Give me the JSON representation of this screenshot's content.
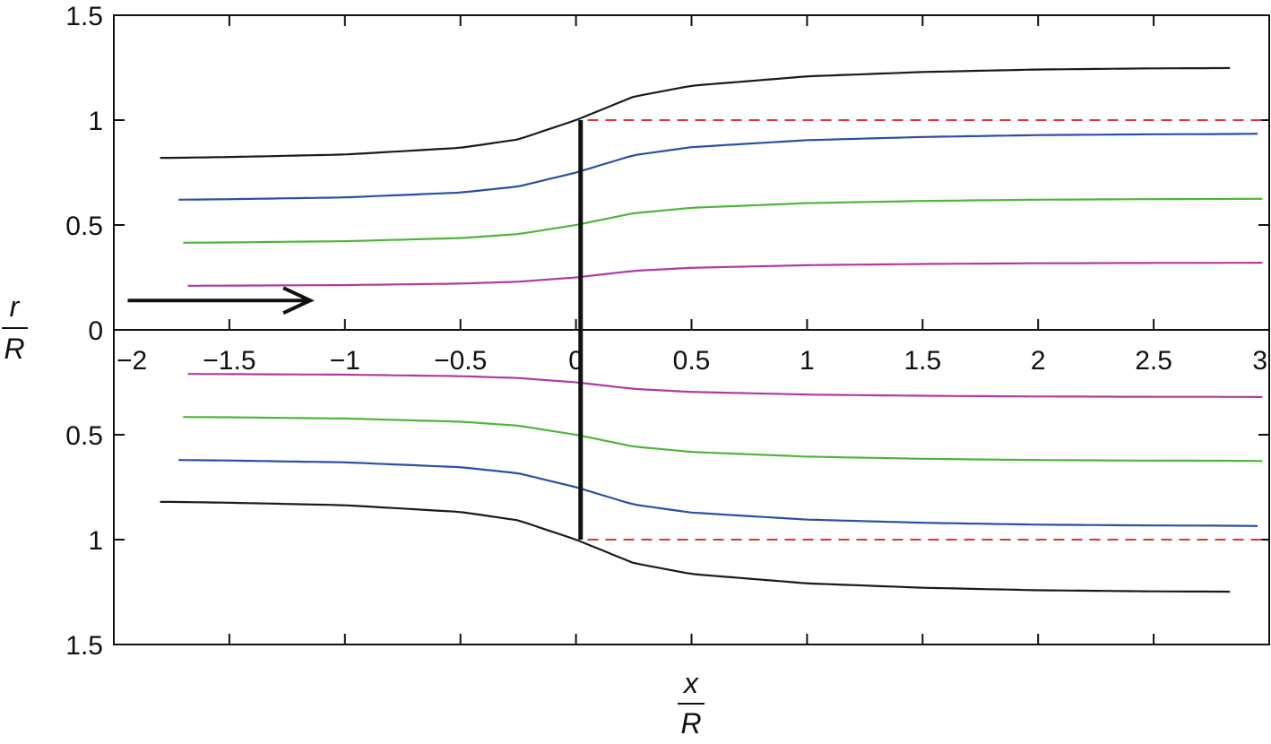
{
  "chart_data": {
    "type": "line",
    "xlabel": {
      "numerator": "x",
      "denominator": "R"
    },
    "ylabel": {
      "numerator": "r",
      "denominator": "R"
    },
    "xlim": [
      -2,
      3
    ],
    "ylim": [
      -1.5,
      1.5
    ],
    "grid": false,
    "x_ticks": [
      {
        "value": -2,
        "label": "−2"
      },
      {
        "value": -1.5,
        "label": "−1.5"
      },
      {
        "value": -1,
        "label": "−1"
      },
      {
        "value": -0.5,
        "label": "−0.5"
      },
      {
        "value": 0,
        "label": "0"
      },
      {
        "value": 0.5,
        "label": "0.5"
      },
      {
        "value": 1,
        "label": "1"
      },
      {
        "value": 1.5,
        "label": "1.5"
      },
      {
        "value": 2,
        "label": "2"
      },
      {
        "value": 2.5,
        "label": "2.5"
      },
      {
        "value": 3,
        "label": "3"
      }
    ],
    "y_ticks": [
      {
        "value": 1.5,
        "label": "1.5"
      },
      {
        "value": 1,
        "label": "1"
      },
      {
        "value": 0.5,
        "label": "0.5"
      },
      {
        "value": 0,
        "label": "0"
      },
      {
        "value": -0.5,
        "label": "0.5"
      },
      {
        "value": -1,
        "label": "1"
      },
      {
        "value": -1.5,
        "label": "1.5"
      }
    ],
    "streamline_params": {
      "x": [
        -1.75,
        -1.5,
        -1.0,
        -0.5,
        -0.25,
        0,
        0.25,
        0.5,
        1.0,
        1.5,
        2.0,
        2.5,
        2.84,
        2.95
      ],
      "shape_rise": [
        0.0,
        0.005,
        0.02,
        0.06,
        0.11,
        0.225,
        0.55,
        0.7,
        0.83,
        0.89,
        0.925,
        0.94,
        0.945,
        0.95
      ]
    },
    "series": [
      {
        "color": "#1a1a1a",
        "r_upstream": 0.82,
        "r_disk": 1.0,
        "r_downstream": 1.25,
        "x_start": -1.8,
        "x_end": 2.83
      },
      {
        "color": "#2b4fa5",
        "r_upstream": 0.62,
        "r_disk": 0.75,
        "r_downstream": 0.935,
        "x_start": -1.72,
        "x_end": 2.95
      },
      {
        "color": "#4db53a",
        "r_upstream": 0.415,
        "r_disk": 0.5,
        "r_downstream": 0.625,
        "x_start": -1.7,
        "x_end": 2.97
      },
      {
        "color": "#b03aa5",
        "r_upstream": 0.21,
        "r_disk": 0.25,
        "r_downstream": 0.32,
        "x_start": -1.68,
        "x_end": 2.97
      }
    ],
    "actuator_disk": {
      "x": 0.02,
      "r_min": -1.0,
      "r_max": 1.0,
      "color": "#111111"
    },
    "reference_lines": [
      {
        "style": "dashed",
        "color": "#e0322e",
        "r": 1.0,
        "x_start": 0.05,
        "x_end": 2.97
      },
      {
        "style": "dashed",
        "color": "#e0322e",
        "r": -1.0,
        "x_start": 0.05,
        "x_end": 2.97
      }
    ],
    "flow_arrow": {
      "x_start": -1.94,
      "x_end": -1.15,
      "r": 0.14,
      "color": "#111111"
    }
  }
}
